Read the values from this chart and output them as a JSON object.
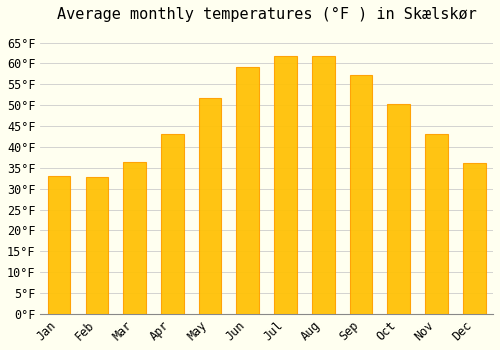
{
  "title": "Average monthly temperatures (°F ) in Skælskør",
  "months": [
    "Jan",
    "Feb",
    "Mar",
    "Apr",
    "May",
    "Jun",
    "Jul",
    "Aug",
    "Sep",
    "Oct",
    "Nov",
    "Dec"
  ],
  "values": [
    33.0,
    32.9,
    36.3,
    43.2,
    51.8,
    59.2,
    61.9,
    61.9,
    57.2,
    50.2,
    43.0,
    36.1
  ],
  "bar_color_face": "#FFC107",
  "bar_color_edge": "#FFA000",
  "background_color": "#FFFFF0",
  "grid_color": "#cccccc",
  "ylim": [
    0,
    68
  ],
  "yticks": [
    0,
    5,
    10,
    15,
    20,
    25,
    30,
    35,
    40,
    45,
    50,
    55,
    60,
    65
  ],
  "title_fontsize": 11,
  "tick_fontsize": 8.5,
  "font_family": "monospace"
}
